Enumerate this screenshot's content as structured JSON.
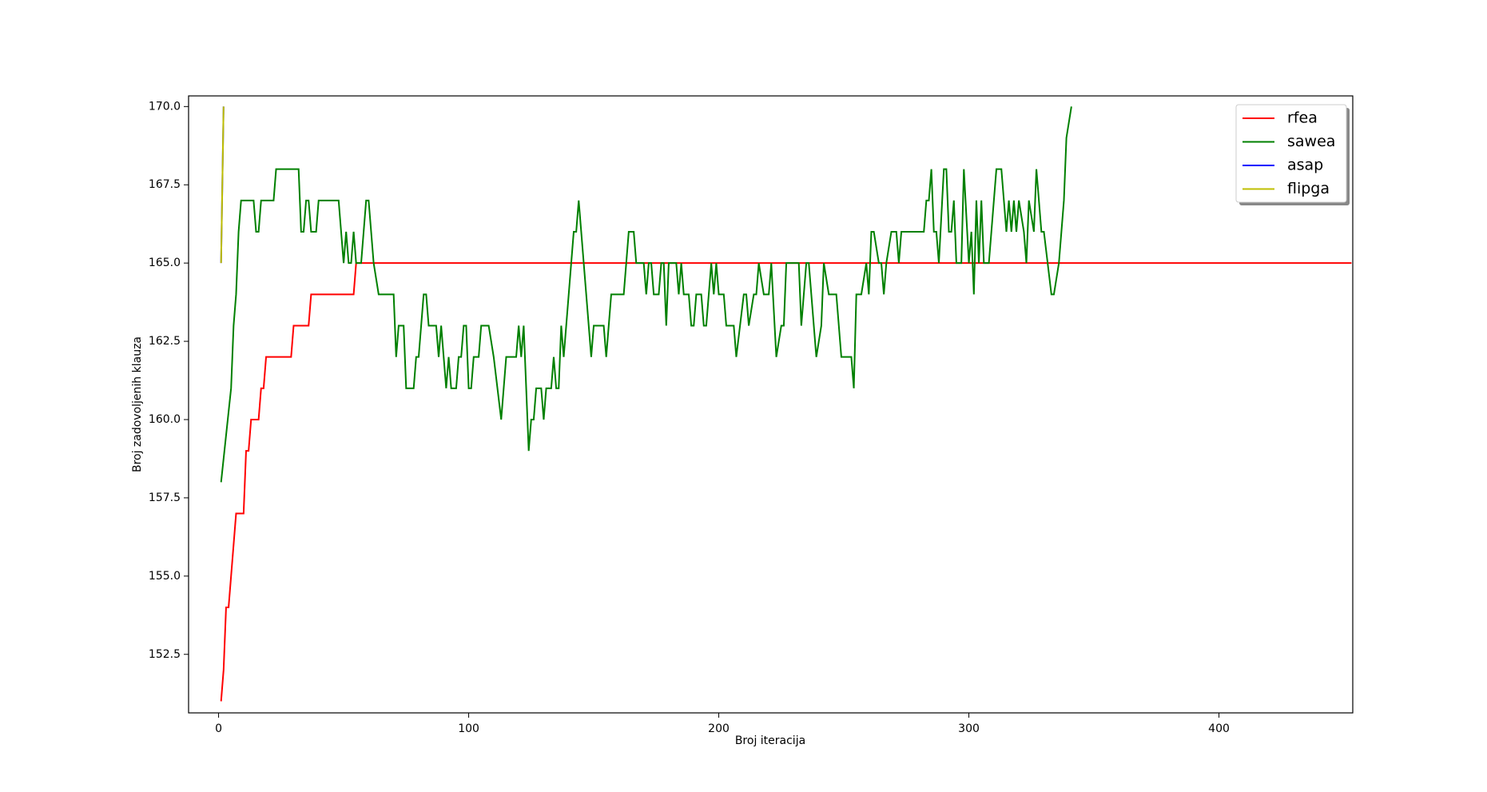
{
  "chart_data": {
    "type": "line",
    "xlabel": "Broj iteracija",
    "ylabel": "Broj zadovoljenih klauza",
    "xlim": [
      -12,
      453.5
    ],
    "ylim": [
      150.63,
      170.34
    ],
    "xticks": [
      0,
      100,
      200,
      300,
      400
    ],
    "yticks": [
      {
        "value": 152.5,
        "label": "152.5"
      },
      {
        "value": 155,
        "label": "155.0"
      },
      {
        "value": 157.5,
        "label": "157.5"
      },
      {
        "value": 160,
        "label": "160.0"
      },
      {
        "value": 162.5,
        "label": "162.5"
      },
      {
        "value": 165,
        "label": "165.0"
      },
      {
        "value": 167.5,
        "label": "167.5"
      },
      {
        "value": 170,
        "label": "170.0"
      }
    ],
    "legend": "upper right",
    "series": [
      {
        "name": "rfea",
        "color": "#ff0000",
        "x": [
          1,
          2,
          3,
          4,
          5,
          6,
          7,
          10,
          11,
          12,
          13,
          16,
          17,
          18,
          19,
          29,
          30,
          36,
          37,
          54,
          55,
          453
        ],
        "values": [
          151,
          152,
          154,
          154,
          155,
          156,
          157,
          157,
          159,
          159,
          160,
          160,
          161,
          161,
          162,
          162,
          163,
          163,
          164,
          164,
          165,
          165
        ]
      },
      {
        "name": "sawea",
        "color": "#008000",
        "x": [
          1,
          5,
          6,
          7,
          8,
          9,
          14,
          15,
          16,
          17,
          22,
          23,
          32,
          33,
          34,
          35,
          36,
          37,
          39,
          40,
          48,
          50,
          51,
          52,
          53,
          54,
          55,
          57,
          59,
          60,
          62,
          64,
          70,
          71,
          72,
          74,
          75,
          78,
          79,
          80,
          81,
          82,
          83,
          84,
          87,
          88,
          89,
          91,
          92,
          93,
          95,
          96,
          97,
          98,
          99,
          100,
          101,
          102,
          104,
          105,
          108,
          110,
          113,
          115,
          119,
          120,
          121,
          122,
          124,
          125,
          126,
          127,
          129,
          130,
          131,
          133,
          134,
          135,
          136,
          137,
          138,
          139,
          142,
          143,
          144,
          145,
          147,
          149,
          150,
          154,
          155,
          156,
          157,
          162,
          164,
          166,
          167,
          170,
          171,
          172,
          173,
          174,
          176,
          177,
          178,
          179,
          180,
          183,
          184,
          185,
          186,
          188,
          189,
          190,
          191,
          193,
          194,
          195,
          197,
          198,
          199,
          200,
          202,
          203,
          206,
          207,
          210,
          211,
          212,
          214,
          215,
          216,
          218,
          220,
          221,
          223,
          225,
          226,
          227,
          232,
          233,
          235,
          236,
          237,
          239,
          241,
          242,
          244,
          247,
          249,
          253,
          254,
          255,
          257,
          259,
          260,
          261,
          262,
          264,
          265,
          266,
          267,
          269,
          271,
          272,
          273,
          282,
          283,
          284,
          285,
          286,
          287,
          288,
          290,
          291,
          292,
          293,
          294,
          295,
          297,
          298,
          300,
          301,
          302,
          303,
          304,
          305,
          306,
          308,
          311,
          313,
          315,
          316,
          317,
          318,
          319,
          320,
          322,
          323,
          324,
          326,
          327,
          329,
          330,
          333,
          334,
          336,
          337,
          338,
          339,
          341
        ],
        "values": [
          158,
          161,
          163,
          164,
          166,
          167,
          167,
          166,
          166,
          167,
          167,
          168,
          168,
          166,
          166,
          167,
          167,
          166,
          166,
          167,
          167,
          165,
          166,
          165,
          165,
          166,
          165,
          165,
          167,
          167,
          165,
          164,
          164,
          162,
          163,
          163,
          161,
          161,
          162,
          162,
          163,
          164,
          164,
          163,
          163,
          162,
          163,
          161,
          162,
          161,
          161,
          162,
          162,
          163,
          163,
          161,
          161,
          162,
          162,
          163,
          163,
          162,
          160,
          162,
          162,
          163,
          162,
          163,
          159,
          160,
          160,
          161,
          161,
          160,
          161,
          161,
          162,
          161,
          161,
          163,
          162,
          163,
          166,
          166,
          167,
          166,
          164,
          162,
          163,
          163,
          162,
          163,
          164,
          164,
          166,
          166,
          165,
          165,
          164,
          165,
          165,
          164,
          164,
          165,
          165,
          163,
          165,
          165,
          164,
          165,
          164,
          164,
          163,
          163,
          164,
          164,
          163,
          163,
          165,
          164,
          165,
          164,
          164,
          163,
          163,
          162,
          164,
          164,
          163,
          164,
          164,
          165,
          164,
          164,
          165,
          162,
          163,
          163,
          165,
          165,
          163,
          165,
          165,
          164,
          162,
          163,
          165,
          164,
          164,
          162,
          162,
          161,
          164,
          164,
          165,
          164,
          166,
          166,
          165,
          165,
          164,
          165,
          166,
          166,
          165,
          166,
          166,
          167,
          167,
          168,
          166,
          166,
          165,
          168,
          168,
          166,
          166,
          167,
          165,
          165,
          168,
          165,
          166,
          164,
          167,
          165,
          167,
          165,
          165,
          168,
          168,
          166,
          167,
          166,
          167,
          166,
          167,
          166,
          165,
          167,
          166,
          168,
          166,
          166,
          164,
          164,
          165,
          166,
          167,
          169,
          170
        ]
      },
      {
        "name": "asap",
        "color": "#0000ff",
        "x": [
          1,
          2
        ],
        "values": [
          165,
          170
        ]
      },
      {
        "name": "flipga",
        "color": "#bfbf00",
        "x": [
          1,
          2
        ],
        "values": [
          165,
          170
        ]
      }
    ]
  }
}
